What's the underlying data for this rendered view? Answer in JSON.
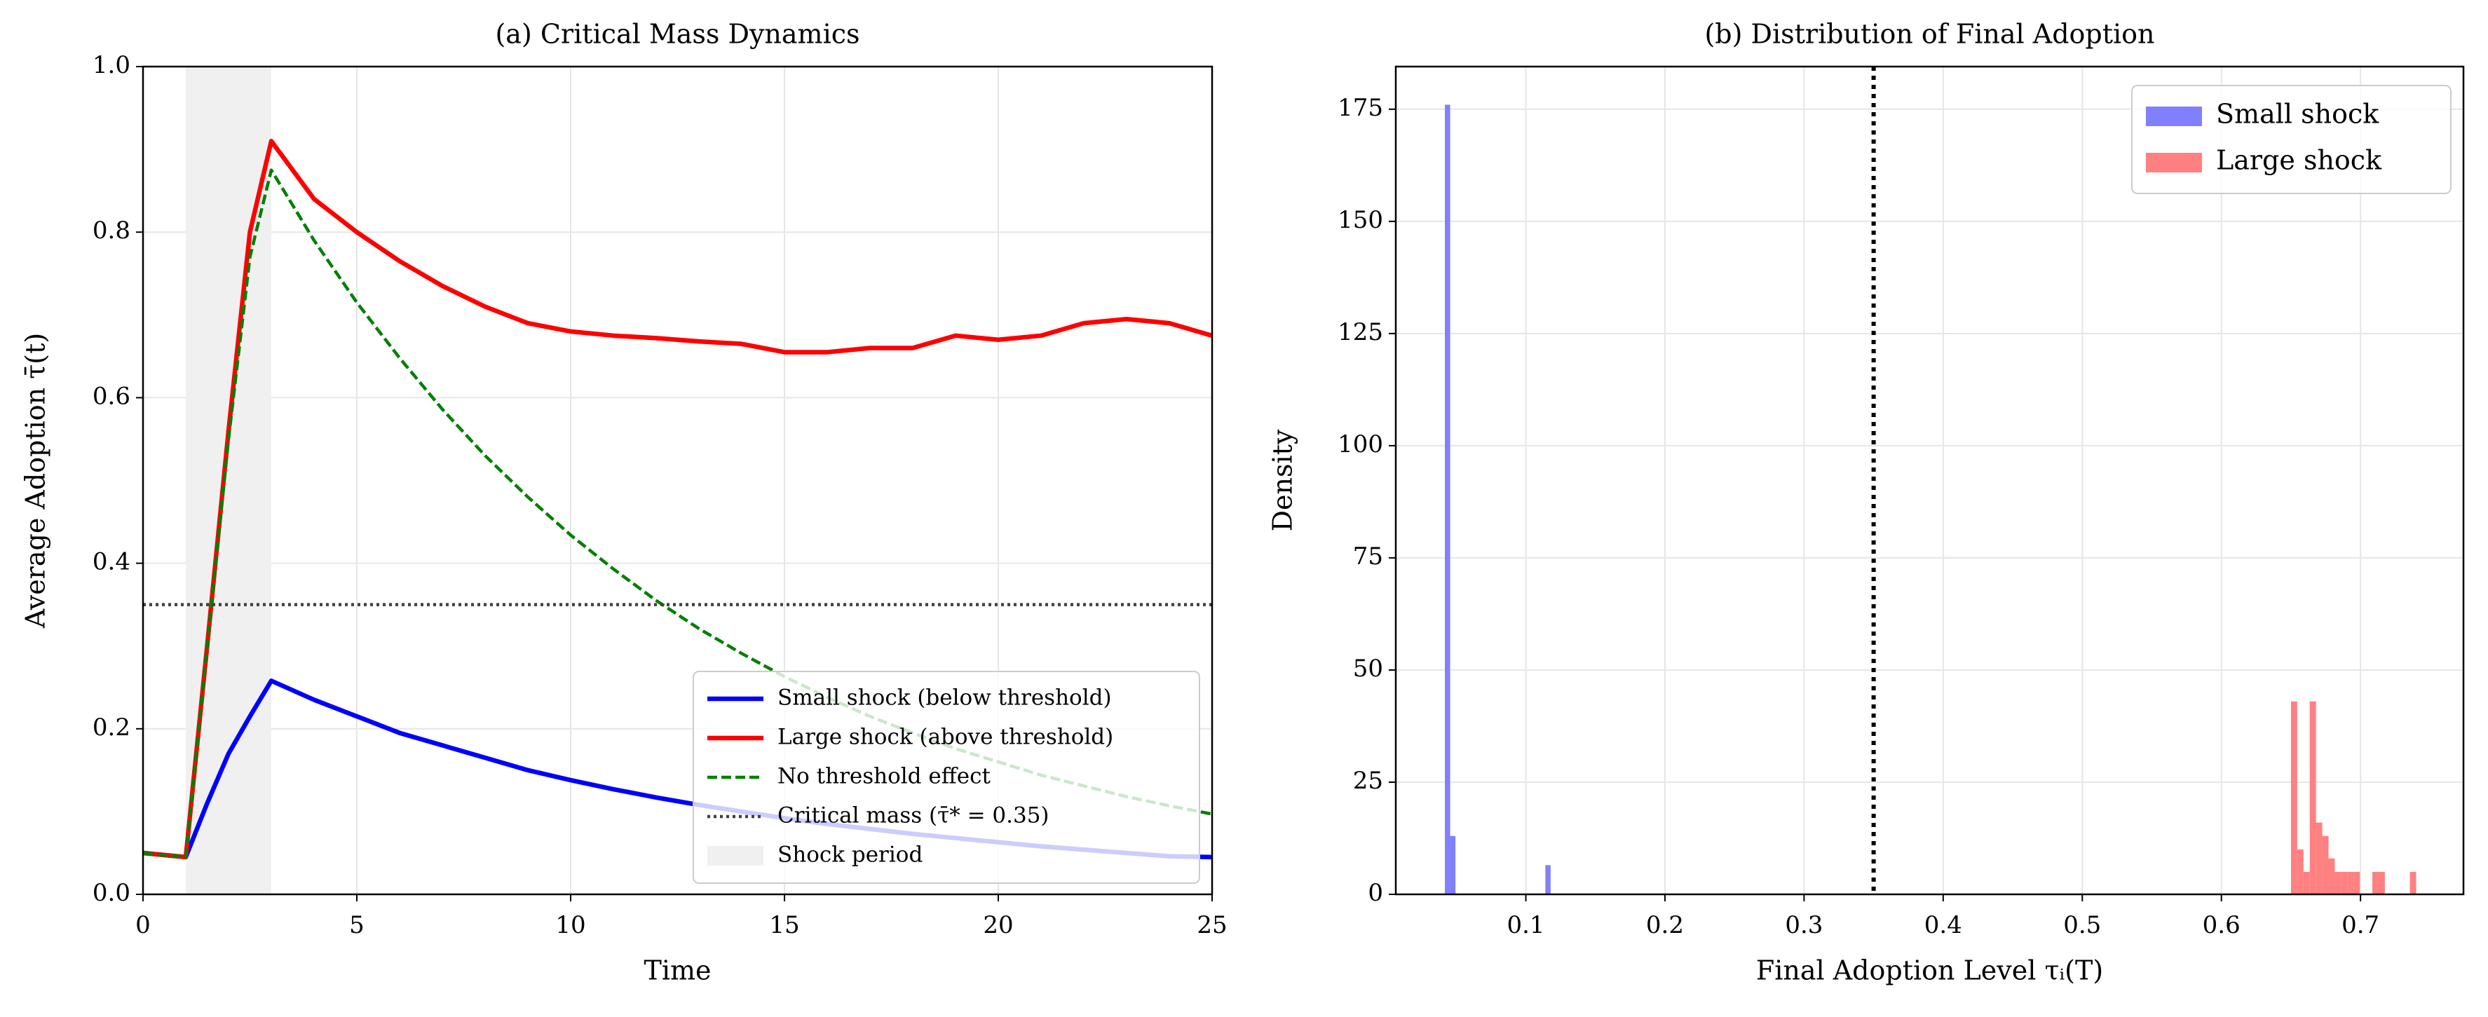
{
  "chart_data": [
    {
      "type": "line",
      "title": "(a) Critical Mass Dynamics",
      "xlabel": "Time",
      "ylabel": "Average Adoption τ̄(t)",
      "x": [
        0,
        1,
        1.5,
        2,
        2.5,
        3,
        4,
        5,
        6,
        7,
        8,
        9,
        10,
        11,
        12,
        13,
        14,
        15,
        16,
        17,
        18,
        19,
        20,
        21,
        22,
        23,
        24,
        25
      ],
      "series": [
        {
          "name": "Small shock (below threshold)",
          "color": "#0000ff",
          "linestyle": "solid",
          "values": [
            0.05,
            0.045,
            0.11,
            0.17,
            0.215,
            0.258,
            0.235,
            0.215,
            0.195,
            0.18,
            0.165,
            0.15,
            0.138,
            0.127,
            0.117,
            0.108,
            0.1,
            0.092,
            0.085,
            0.079,
            0.073,
            0.068,
            0.063,
            0.058,
            0.054,
            0.05,
            0.046,
            0.045
          ]
        },
        {
          "name": "Large shock (above threshold)",
          "color": "#ff0000",
          "linestyle": "solid",
          "values": [
            0.05,
            0.045,
            0.3,
            0.56,
            0.8,
            0.91,
            0.84,
            0.8,
            0.765,
            0.735,
            0.71,
            0.69,
            0.68,
            0.675,
            0.672,
            0.668,
            0.665,
            0.655,
            0.655,
            0.66,
            0.66,
            0.675,
            0.67,
            0.675,
            0.69,
            0.695,
            0.69,
            0.675
          ]
        },
        {
          "name": "No threshold effect",
          "color": "#008000",
          "linestyle": "dashed",
          "values": [
            0.05,
            0.045,
            0.3,
            0.55,
            0.77,
            0.875,
            0.79,
            0.715,
            0.648,
            0.586,
            0.53,
            0.48,
            0.434,
            0.393,
            0.355,
            0.321,
            0.291,
            0.263,
            0.238,
            0.215,
            0.195,
            0.176,
            0.16,
            0.144,
            0.131,
            0.118,
            0.107,
            0.097
          ]
        }
      ],
      "threshold": {
        "value": 0.35,
        "label": "Critical mass (τ̄* = 0.35)",
        "color": "#404040"
      },
      "shaded": {
        "range": [
          1,
          3
        ],
        "label": "Shock period",
        "color": "#f0f0f0"
      },
      "xlim": [
        0,
        25
      ],
      "xticks": [
        0,
        5,
        10,
        15,
        20,
        25
      ],
      "ylim": [
        0,
        1
      ],
      "yticks": [
        {
          "value": 0,
          "label": "0.0"
        },
        0.2,
        0.4,
        0.6,
        0.8,
        {
          "value": 1,
          "label": "1.0"
        }
      ],
      "grid": true,
      "legend": "lower right"
    },
    {
      "type": "histogram",
      "title": "(b) Distribution of Final Adoption",
      "xlabel": "Final Adoption Level τᵢ(T)",
      "ylabel": "Density",
      "series": [
        {
          "name": "Small shock",
          "color": "#8080ff",
          "bins": [
            0.0418,
            0.0456,
            0.0494,
            0.0532,
            0.057,
            0.0608,
            0.0646,
            0.0684,
            0.0722,
            0.076,
            0.0798,
            0.0836,
            0.0874,
            0.0912,
            0.095,
            0.0988,
            0.1026,
            0.1064,
            0.1102,
            0.114,
            0.1178
          ],
          "values": [
            176,
            13,
            0,
            0,
            0,
            0,
            0,
            0,
            0,
            0,
            0,
            0,
            0,
            0,
            0,
            0,
            0,
            0,
            0,
            6.5
          ]
        },
        {
          "name": "Large shock",
          "color": "#ff8080",
          "bins": [
            0.65,
            0.6545,
            0.659,
            0.6635,
            0.668,
            0.6725,
            0.677,
            0.6815,
            0.686,
            0.6905,
            0.695,
            0.6995,
            0.704,
            0.7085,
            0.713,
            0.7175,
            0.722,
            0.7265,
            0.731,
            0.7355,
            0.74
          ],
          "values": [
            43,
            10,
            5,
            43,
            16,
            13,
            8,
            5,
            5,
            5,
            5,
            0,
            0,
            5,
            5,
            0,
            0,
            0,
            0,
            5
          ]
        }
      ],
      "vline": {
        "value": 0.35,
        "color": "#000000"
      },
      "xlim": [
        0.0065,
        0.774
      ],
      "xticks": [
        0.1,
        0.2,
        0.3,
        0.4,
        0.5,
        0.6,
        0.7
      ],
      "ylim": [
        0,
        184.5
      ],
      "yticks": [
        0,
        25,
        50,
        75,
        100,
        125,
        150,
        175
      ],
      "grid": true,
      "legend": "upper right"
    }
  ]
}
